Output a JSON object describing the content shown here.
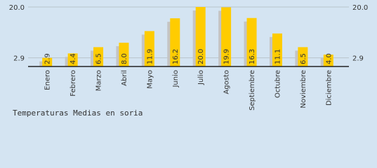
{
  "chart_data": {
    "type": "bar",
    "title": "Temperaturas Medias en soria",
    "categories": [
      "Enero",
      "Febrero",
      "Marzo",
      "Abril",
      "Mayo",
      "Junio",
      "Julio",
      "Agosto",
      "Septiembre",
      "Octubre",
      "Noviembre",
      "Diciembre"
    ],
    "values": [
      2.9,
      4.4,
      6.5,
      8.0,
      11.9,
      16.2,
      20.0,
      19.9,
      16.3,
      11.1,
      6.5,
      4.0
    ],
    "value_labels": [
      "2.9",
      "4.4",
      "6.5",
      "8.0",
      "11.9",
      "16.2",
      "20.0",
      "19.9",
      "16.3",
      "11.1",
      "6.5",
      "4.0"
    ],
    "color": "#ffcc00",
    "shadow_color": "#c4c4c4",
    "ylim": [
      0,
      20
    ],
    "yticks": [
      2.9,
      {
        "value": 20,
        "label": "20.0"
      }
    ],
    "grid": true
  }
}
